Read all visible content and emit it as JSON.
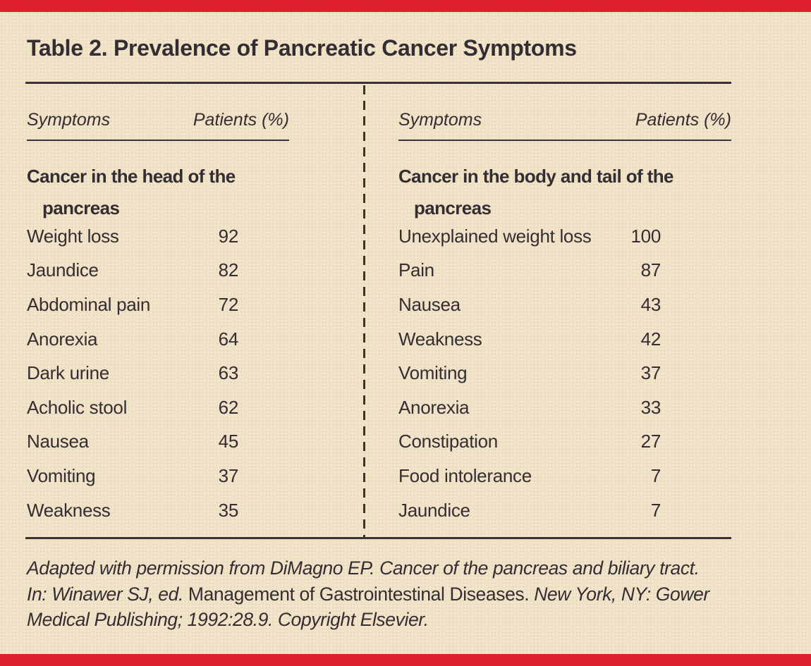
{
  "page": {
    "title": "Table 2. Prevalence of Pancreatic Cancer Symptoms"
  },
  "colors": {
    "accent_red": "#df1f2c",
    "background_cream": "#f2e4c8",
    "text": "#322d33",
    "rule": "#3a3136"
  },
  "columns": [
    {
      "header_symptoms": "Symptoms",
      "header_patients": "Patients (%)",
      "section_line1": "Cancer in the head of the",
      "section_line2": "pancreas",
      "rows": [
        {
          "label": "Weight loss",
          "value": "92"
        },
        {
          "label": "Jaundice",
          "value": "82"
        },
        {
          "label": "Abdominal pain",
          "value": "72"
        },
        {
          "label": "Anorexia",
          "value": "64"
        },
        {
          "label": "Dark urine",
          "value": "63"
        },
        {
          "label": "Acholic stool",
          "value": "62"
        },
        {
          "label": "Nausea",
          "value": "45"
        },
        {
          "label": "Vomiting",
          "value": "37"
        },
        {
          "label": "Weakness",
          "value": "35"
        }
      ]
    },
    {
      "header_symptoms": "Symptoms",
      "header_patients": "Patients (%)",
      "section_line1": "Cancer in the body and tail of the",
      "section_line2": "pancreas",
      "rows": [
        {
          "label": "Unexplained weight loss",
          "value": "100"
        },
        {
          "label": "Pain",
          "value": "87"
        },
        {
          "label": "Nausea",
          "value": "43"
        },
        {
          "label": "Weakness",
          "value": "42"
        },
        {
          "label": "Vomiting",
          "value": "37"
        },
        {
          "label": "Anorexia",
          "value": "33"
        },
        {
          "label": "Constipation",
          "value": "27"
        },
        {
          "label": "Food intolerance",
          "value": "7"
        },
        {
          "label": "Jaundice",
          "value": "7"
        }
      ]
    }
  ],
  "footnote": {
    "line1": "Adapted with permission from DiMagno EP. Cancer of the pancreas and biliary tract.",
    "line2_italic1": "In: Winawer SJ, ed. ",
    "line2_roman": "Management of Gastrointestinal Diseases.",
    "line2_italic2": " New York, NY: Gower",
    "line3": "Medical Publishing; 1992:28.9. Copyright Elsevier."
  }
}
